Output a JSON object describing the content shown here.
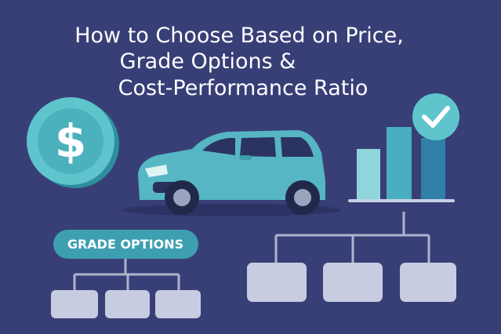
{
  "title": {
    "lines": [
      "How to Choose Based on Price,",
      "Grade Options &",
      "Cost-Performance Ratio"
    ]
  },
  "badge": {
    "label": "GRADE OPTIONS"
  }
}
